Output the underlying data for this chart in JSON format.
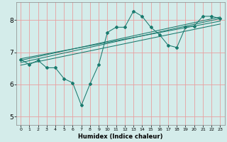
{
  "title": "",
  "xlabel": "Humidex (Indice chaleur)",
  "ylabel": "",
  "bg_color": "#d4ecea",
  "line_color": "#1a7a6e",
  "grid_color_major": "#e8a0a0",
  "grid_color_minor": "#e8a0a0",
  "plot_bg": "#d4ecea",
  "xlim": [
    -0.5,
    23.5
  ],
  "ylim": [
    4.75,
    8.55
  ],
  "xticks": [
    0,
    1,
    2,
    3,
    4,
    5,
    6,
    7,
    8,
    9,
    10,
    11,
    12,
    13,
    14,
    15,
    16,
    17,
    18,
    19,
    20,
    21,
    22,
    23
  ],
  "yticks": [
    5,
    6,
    7,
    8
  ],
  "scatter_x": [
    0,
    1,
    2,
    3,
    4,
    5,
    6,
    7,
    8,
    9,
    10,
    11,
    12,
    13,
    14,
    15,
    16,
    17,
    18,
    19,
    20,
    21,
    22,
    23
  ],
  "scatter_y": [
    6.78,
    6.62,
    6.75,
    6.52,
    6.52,
    6.18,
    6.05,
    5.35,
    6.02,
    6.62,
    7.62,
    7.78,
    7.78,
    8.28,
    8.12,
    7.78,
    7.55,
    7.22,
    7.15,
    7.78,
    7.82,
    8.12,
    8.12,
    8.05
  ],
  "regression_lines": [
    {
      "x0": 0,
      "y0": 6.68,
      "x1": 23,
      "y1": 8.05
    },
    {
      "x0": 0,
      "y0": 6.75,
      "x1": 23,
      "y1": 8.1
    },
    {
      "x0": 0,
      "y0": 6.8,
      "x1": 23,
      "y1": 7.97
    },
    {
      "x0": 0,
      "y0": 6.6,
      "x1": 23,
      "y1": 7.88
    }
  ]
}
